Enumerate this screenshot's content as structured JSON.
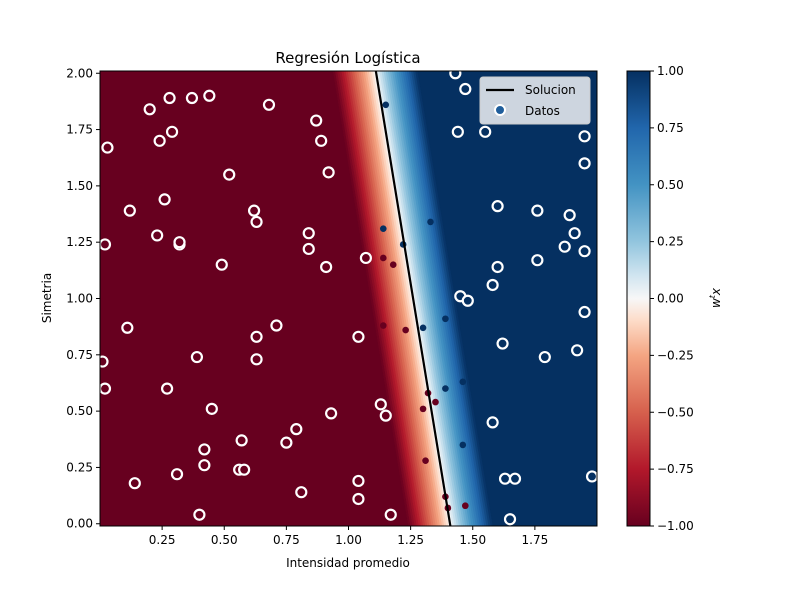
{
  "chart_data": {
    "type": "scatter",
    "title": "Regresión Logística",
    "xlabel": "Intensidad promedio",
    "ylabel": "Simetria",
    "xlim": [
      0.0,
      2.0
    ],
    "ylim": [
      -0.01,
      2.01
    ],
    "x_ticks": [
      0.25,
      0.5,
      0.75,
      1.0,
      1.25,
      1.5,
      1.75
    ],
    "x_tick_labels": [
      "0.25",
      "0.50",
      "0.75",
      "1.00",
      "1.25",
      "1.50",
      "1.75"
    ],
    "y_ticks": [
      0.0,
      0.25,
      0.5,
      0.75,
      1.0,
      1.25,
      1.5,
      1.75,
      2.0
    ],
    "y_tick_labels": [
      "0.00",
      "0.25",
      "0.50",
      "0.75",
      "1.00",
      "1.25",
      "1.50",
      "1.75",
      "2.00"
    ],
    "grid": false,
    "legend": {
      "placement": "top-right",
      "entries": [
        "Solucion",
        "Datos"
      ]
    },
    "decision_line": {
      "name": "Solucion",
      "x": [
        1.11,
        1.41
      ],
      "y": [
        2.01,
        -0.01
      ],
      "color": "#000000"
    },
    "background": {
      "description_free": true,
      "boundary_at_y0": 1.41,
      "boundary_at_y2": 1.11,
      "transition_width": 0.17,
      "colormap": "RdBu"
    },
    "colorbar": {
      "label": "w^t x",
      "ticks": [
        1.0,
        0.75,
        0.5,
        0.25,
        0.0,
        -0.25,
        -0.5,
        -0.75,
        -1.0
      ],
      "tick_labels": [
        "1.00",
        "0.75",
        "0.50",
        "0.25",
        "0.00",
        "−0.25",
        "−0.50",
        "−0.75",
        "−1.00"
      ],
      "range": [
        -1.0,
        1.0
      ]
    },
    "colors": {
      "positive": "#053061",
      "negative": "#67001f",
      "marker_edge": "#ffffff"
    },
    "series": [
      {
        "name": "Datos",
        "points": [
          [
            0.03,
            1.67,
            -1
          ],
          [
            0.02,
            1.24,
            -1
          ],
          [
            0.02,
            0.6,
            -1
          ],
          [
            0.01,
            0.72,
            -1
          ],
          [
            0.11,
            0.87,
            -1
          ],
          [
            0.12,
            1.39,
            -1
          ],
          [
            0.14,
            0.18,
            -1
          ],
          [
            0.2,
            1.84,
            -1
          ],
          [
            0.23,
            1.28,
            -1
          ],
          [
            0.24,
            1.7,
            -1
          ],
          [
            0.26,
            1.44,
            -1
          ],
          [
            0.27,
            0.6,
            -1
          ],
          [
            0.28,
            1.89,
            -1
          ],
          [
            0.29,
            1.74,
            -1
          ],
          [
            0.32,
            1.24,
            -1
          ],
          [
            0.32,
            1.25,
            -1
          ],
          [
            0.31,
            0.22,
            -1
          ],
          [
            0.37,
            1.89,
            -1
          ],
          [
            0.39,
            0.74,
            -1
          ],
          [
            0.42,
            0.33,
            -1
          ],
          [
            0.42,
            0.26,
            -1
          ],
          [
            0.44,
            1.9,
            -1
          ],
          [
            0.45,
            0.51,
            -1
          ],
          [
            0.4,
            0.04,
            -1
          ],
          [
            0.49,
            1.15,
            -1
          ],
          [
            0.52,
            1.55,
            -1
          ],
          [
            0.56,
            0.24,
            -1
          ],
          [
            0.57,
            0.37,
            -1
          ],
          [
            0.58,
            0.24,
            -1
          ],
          [
            0.62,
            1.39,
            -1
          ],
          [
            0.63,
            1.34,
            -1
          ],
          [
            0.63,
            0.83,
            -1
          ],
          [
            0.63,
            0.73,
            -1
          ],
          [
            0.68,
            1.86,
            -1
          ],
          [
            0.71,
            0.88,
            -1
          ],
          [
            0.75,
            0.36,
            -1
          ],
          [
            0.79,
            0.42,
            -1
          ],
          [
            0.81,
            0.14,
            -1
          ],
          [
            0.84,
            1.29,
            -1
          ],
          [
            0.84,
            1.22,
            -1
          ],
          [
            0.87,
            1.79,
            -1
          ],
          [
            0.89,
            1.7,
            -1
          ],
          [
            0.91,
            1.14,
            -1
          ],
          [
            0.92,
            1.56,
            -1
          ],
          [
            0.93,
            0.49,
            -1
          ],
          [
            1.04,
            0.83,
            -1
          ],
          [
            1.04,
            0.19,
            -1
          ],
          [
            1.04,
            0.11,
            -1
          ],
          [
            1.07,
            1.18,
            -1
          ],
          [
            1.13,
            0.53,
            -1
          ],
          [
            1.14,
            0.88,
            -1
          ],
          [
            1.14,
            1.18,
            -1
          ],
          [
            1.15,
            0.48,
            -1
          ],
          [
            1.17,
            0.04,
            -1
          ],
          [
            1.18,
            1.15,
            -1
          ],
          [
            1.23,
            0.86,
            -1
          ],
          [
            1.3,
            0.51,
            -1
          ],
          [
            1.31,
            0.28,
            -1
          ],
          [
            1.32,
            0.58,
            -1
          ],
          [
            1.35,
            0.54,
            -1
          ],
          [
            1.39,
            0.12,
            -1
          ],
          [
            1.4,
            0.07,
            -1
          ],
          [
            1.47,
            0.08,
            -1
          ],
          [
            1.15,
            1.86,
            1
          ],
          [
            1.14,
            1.31,
            1
          ],
          [
            1.22,
            1.24,
            1
          ],
          [
            1.3,
            0.87,
            1
          ],
          [
            1.33,
            1.34,
            1
          ],
          [
            1.39,
            0.6,
            1
          ],
          [
            1.39,
            0.91,
            1
          ],
          [
            1.43,
            2.0,
            1
          ],
          [
            1.44,
            1.74,
            1
          ],
          [
            1.45,
            1.01,
            1
          ],
          [
            1.46,
            0.63,
            1
          ],
          [
            1.46,
            0.35,
            1
          ],
          [
            1.47,
            1.93,
            1
          ],
          [
            1.48,
            0.99,
            1
          ],
          [
            1.55,
            1.74,
            1
          ],
          [
            1.58,
            1.06,
            1
          ],
          [
            1.58,
            0.45,
            1
          ],
          [
            1.6,
            1.41,
            1
          ],
          [
            1.6,
            1.14,
            1
          ],
          [
            1.62,
            0.8,
            1
          ],
          [
            1.63,
            0.2,
            1
          ],
          [
            1.65,
            0.02,
            1
          ],
          [
            1.67,
            0.2,
            1
          ],
          [
            1.76,
            1.39,
            1
          ],
          [
            1.76,
            1.17,
            1
          ],
          [
            1.79,
            0.74,
            1
          ],
          [
            1.87,
            1.23,
            1
          ],
          [
            1.89,
            1.37,
            1
          ],
          [
            1.91,
            1.29,
            1
          ],
          [
            1.92,
            0.77,
            1
          ],
          [
            1.95,
            1.72,
            1
          ],
          [
            1.95,
            1.6,
            1
          ],
          [
            1.95,
            1.21,
            1
          ],
          [
            1.95,
            0.94,
            1
          ],
          [
            1.98,
            0.21,
            1
          ]
        ]
      }
    ]
  }
}
